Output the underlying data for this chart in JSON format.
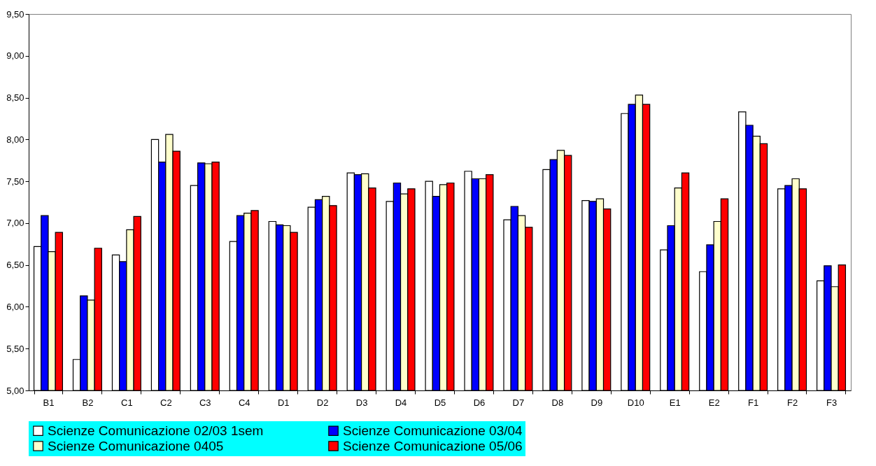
{
  "chart_data": {
    "type": "bar",
    "categories": [
      "B1",
      "B2",
      "C1",
      "C2",
      "C3",
      "C4",
      "D1",
      "D2",
      "D3",
      "D4",
      "D5",
      "D6",
      "D7",
      "D8",
      "D9",
      "D10",
      "E1",
      "E2",
      "F1",
      "F2",
      "F3"
    ],
    "series": [
      {
        "name": "Scienze Comunicazione 02/03 1sem",
        "color": "#ffffff",
        "values": [
          6.72,
          5.37,
          6.62,
          8.0,
          7.45,
          6.78,
          7.02,
          7.19,
          7.6,
          7.26,
          7.5,
          7.62,
          7.04,
          7.64,
          7.27,
          8.31,
          6.68,
          6.42,
          8.33,
          7.41,
          6.31
        ]
      },
      {
        "name": "Scienze Comunicazione 03/04",
        "color": "#0000ff",
        "values": [
          7.09,
          6.13,
          6.54,
          7.73,
          7.72,
          7.09,
          6.98,
          7.28,
          7.58,
          7.48,
          7.32,
          7.53,
          7.2,
          7.76,
          7.26,
          8.42,
          6.97,
          6.74,
          8.17,
          7.45,
          6.49
        ]
      },
      {
        "name": "Scienze Comunicazione 0405",
        "color": "#ffffcc",
        "values": [
          6.66,
          6.08,
          6.92,
          8.06,
          7.71,
          7.12,
          6.97,
          7.32,
          7.59,
          7.35,
          7.46,
          7.53,
          7.09,
          7.87,
          7.29,
          8.53,
          7.42,
          7.02,
          8.04,
          7.53,
          6.24
        ]
      },
      {
        "name": "Scienze Comunicazione 05/06",
        "color": "#ff0000",
        "values": [
          6.89,
          6.7,
          7.08,
          7.86,
          7.73,
          7.15,
          6.89,
          7.21,
          7.42,
          7.41,
          7.48,
          7.58,
          6.95,
          7.81,
          7.17,
          8.42,
          7.6,
          7.29,
          7.95,
          7.41,
          6.5
        ]
      }
    ],
    "ylim": [
      5.0,
      9.5
    ],
    "yticks": [
      {
        "value": 5.0,
        "label": "5,00"
      },
      {
        "value": 5.5,
        "label": "5,50"
      },
      {
        "value": 6.0,
        "label": "6,00"
      },
      {
        "value": 6.5,
        "label": "6,50"
      },
      {
        "value": 7.0,
        "label": "7,00"
      },
      {
        "value": 7.5,
        "label": "7,50"
      },
      {
        "value": 8.0,
        "label": "8,00"
      },
      {
        "value": 8.5,
        "label": "8,50"
      },
      {
        "value": 9.0,
        "label": "9,00"
      },
      {
        "value": 9.5,
        "label": "9,50"
      }
    ],
    "grid": false,
    "legend": "bottom"
  }
}
